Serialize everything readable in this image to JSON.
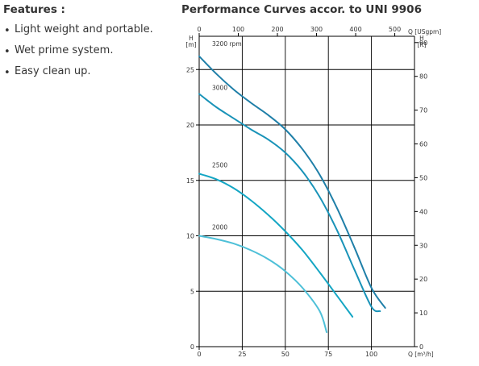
{
  "features": {
    "title": "Features :",
    "items": [
      "Light weight and portable.",
      "Wet prime system.",
      "Easy clean up."
    ]
  },
  "chart_data": {
    "type": "line",
    "title": "Performance Curves accor. to UNI 9906",
    "grid": true,
    "axes": {
      "x_bottom": {
        "label": "Q [m³/h]",
        "range": [
          0,
          125
        ],
        "ticks": [
          0,
          25,
          50,
          75,
          100
        ]
      },
      "x_top": {
        "label": "Q [USgpm]",
        "range": [
          0,
          550.4
        ],
        "ticks": [
          0,
          100,
          200,
          300,
          400,
          500
        ]
      },
      "y_left": {
        "label_top": "H",
        "label_unit": "[m]",
        "range": [
          0,
          28
        ],
        "ticks": [
          0,
          5,
          10,
          15,
          20,
          25
        ]
      },
      "y_right": {
        "label_top": "H",
        "label_unit": "[ft]",
        "range": [
          0,
          91.86
        ],
        "ticks": [
          0,
          10,
          20,
          30,
          40,
          50,
          60,
          70,
          80,
          90
        ]
      }
    },
    "series": [
      {
        "name": "3200 rpm",
        "color": "#1f7fa8",
        "x": [
          0,
          10,
          20,
          30,
          40,
          50,
          60,
          70,
          80,
          90,
          100,
          108
        ],
        "y": [
          26.2,
          24.6,
          23.2,
          22.0,
          20.9,
          19.6,
          17.8,
          15.5,
          12.5,
          9.0,
          5.3,
          3.5
        ]
      },
      {
        "name": "3000",
        "color": "#1993b8",
        "x": [
          0,
          10,
          20,
          30,
          40,
          50,
          60,
          70,
          80,
          90,
          100,
          105
        ],
        "y": [
          22.8,
          21.6,
          20.6,
          19.6,
          18.7,
          17.5,
          15.8,
          13.5,
          10.5,
          7.0,
          3.6,
          3.2
        ]
      },
      {
        "name": "2500",
        "color": "#14a6c4",
        "x": [
          0,
          10,
          20,
          30,
          40,
          50,
          60,
          70,
          80,
          89
        ],
        "y": [
          15.6,
          15.1,
          14.3,
          13.2,
          11.9,
          10.4,
          8.7,
          6.7,
          4.6,
          2.7
        ]
      },
      {
        "name": "2000",
        "color": "#4ec0d8",
        "x": [
          0,
          10,
          20,
          30,
          40,
          50,
          60,
          70,
          74
        ],
        "y": [
          10.0,
          9.7,
          9.3,
          8.7,
          7.9,
          6.8,
          5.3,
          3.2,
          1.3
        ]
      }
    ]
  }
}
